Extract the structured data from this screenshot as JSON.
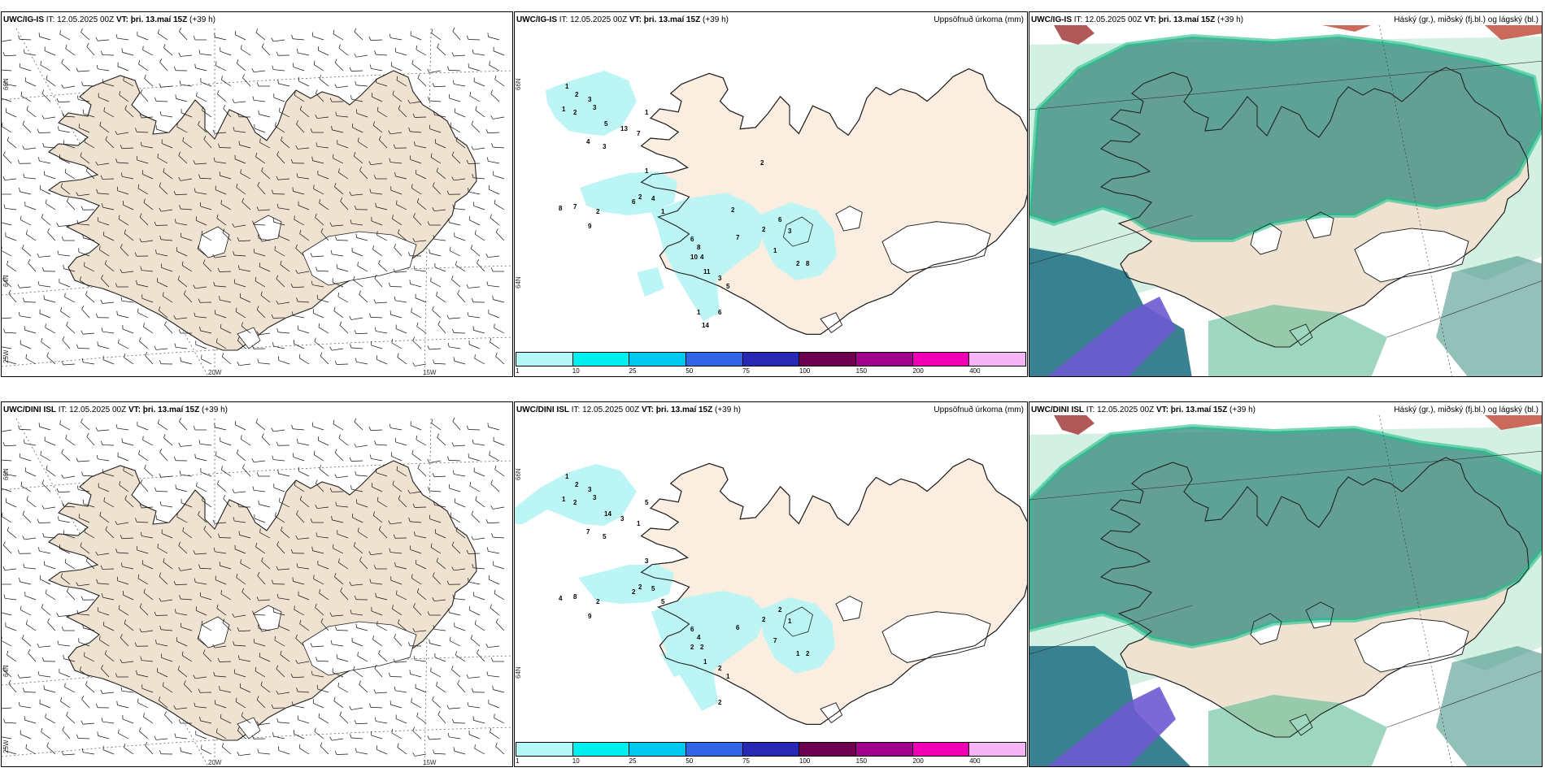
{
  "panels": {
    "r1c1": {
      "model": "UWC/IG-IS",
      "it_label": "IT:",
      "it": "12.05.2025 00Z",
      "vt_label": "VT:",
      "vt": "þri. 13.maí 15Z",
      "lead": "(+39 h)"
    },
    "r1c2": {
      "model": "UWC/IG-IS",
      "it_label": "IT:",
      "it": "12.05.2025 00Z",
      "vt_label": "VT:",
      "vt": "þri. 13.maí 15Z",
      "lead": "(+39 h)",
      "right": "Uppsöfnuð úrkoma (mm)"
    },
    "r1c3": {
      "model": "UWC/IG-IS",
      "it_label": "IT:",
      "it": "12.05.2025 00Z",
      "vt_label": "VT:",
      "vt": "þri. 13.maí 15Z",
      "lead": "(+39 h)",
      "right": "Háský (gr.), miðský (fj.bl.) og lágský (bl.)"
    },
    "r2c1": {
      "model": "UWC/DINI ISL",
      "it_label": "IT:",
      "it": "12.05.2025 00Z",
      "vt_label": "VT:",
      "vt": "þri. 13.maí 15Z",
      "lead": "(+39 h)"
    },
    "r2c2": {
      "model": "UWC/DINI ISL",
      "it_label": "IT:",
      "it": "12.05.2025 00Z",
      "vt_label": "VT:",
      "vt": "þri. 13.maí 15Z",
      "lead": "(+39 h)",
      "right": "Uppsöfnuð úrkoma (mm)"
    },
    "r2c3": {
      "model": "UWC/DINI ISL",
      "it_label": "IT:",
      "it": "12.05.2025 00Z",
      "vt_label": "VT:",
      "vt": "þri. 13.maí 15Z",
      "lead": "(+39 h)",
      "right": "Háský (gr.), miðský (fj.bl.) og lágský (bl.)"
    }
  },
  "grid_labels": {
    "lat66": "66N",
    "lat64": "64N",
    "lon20": "20W",
    "lon15": "15W",
    "lon25": "25W"
  },
  "legend": {
    "ticks": [
      "1",
      "10",
      "25",
      "50",
      "75",
      "100",
      "150",
      "200",
      "400"
    ],
    "colors": [
      "#b3f7f7",
      "#00f0f0",
      "#00c8f0",
      "#3264e6",
      "#2828b4",
      "#6e0050",
      "#a0008c",
      "#f000b4",
      "#f5b4f5"
    ]
  },
  "colors": {
    "land": "#efe2d1",
    "land_precip": "#fbeee1",
    "precip": "#b8f4f4",
    "cloud_high": "#4fb48c",
    "cloud_mid": "#3c8c82",
    "cloud_low": "#6d5ad2"
  },
  "precip_values": {
    "r1": [
      "1",
      "1",
      "2",
      "3",
      "2",
      "3",
      "5",
      "13",
      "7",
      "3",
      "4",
      "1",
      "1",
      "2",
      "1",
      "4",
      "6",
      "7",
      "8",
      "9",
      "2",
      "6",
      "8",
      "10",
      "4",
      "11",
      "3",
      "5",
      "7",
      "2",
      "1",
      "6",
      "3",
      "8",
      "2",
      "6",
      "14",
      "1",
      "2",
      "2"
    ],
    "r2": [
      "1",
      "1",
      "2",
      "3",
      "2",
      "3",
      "14",
      "3",
      "1",
      "5",
      "7",
      "5",
      "3",
      "2",
      "5",
      "5",
      "2",
      "8",
      "4",
      "9",
      "2",
      "6",
      "4",
      "2",
      "2",
      "1",
      "2",
      "1",
      "6",
      "2",
      "7",
      "2",
      "1",
      "2",
      "1",
      "2"
    ]
  }
}
